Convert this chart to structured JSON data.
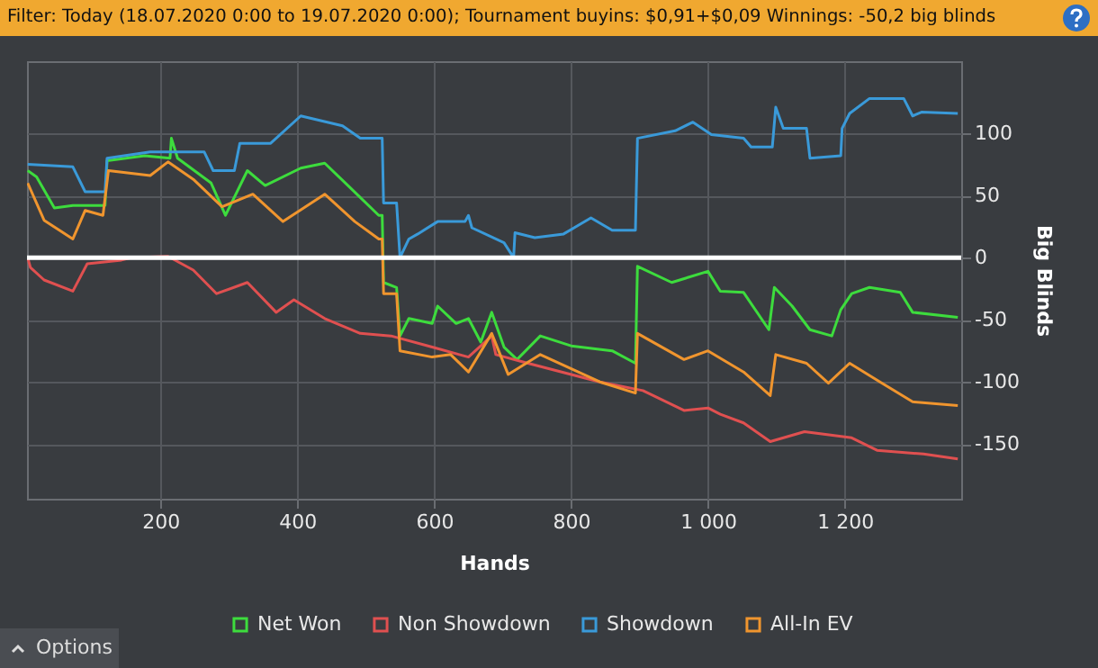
{
  "chart_data": {
    "type": "line",
    "title": "Filter: Today (18.07.2020 0:00 to 19.07.2020 0:00); Tournament buyins: $0,91+$0,09 Winnings: -50,2 big blinds",
    "xlabel": "Hands",
    "ylabel": "Big Blinds",
    "annotations": [
      "Options"
    ],
    "xlim": [
      5,
      1370
    ],
    "xticks": [
      200,
      400,
      600,
      800,
      {
        "value": 1000,
        "label": "1 000"
      },
      {
        "value": 1200,
        "label": "1 200"
      }
    ],
    "ylim": [
      -194,
      158
    ],
    "yticks": [
      -150,
      -100,
      -50,
      0,
      50,
      100
    ],
    "grid": true,
    "legend": "bottom",
    "ref_lines": [
      {
        "axis": "y",
        "value": 0,
        "color": "#ffffff"
      }
    ],
    "series": [
      {
        "name": "Net Won",
        "color": "#3ddc3d",
        "x": [
          6,
          19,
          45,
          72,
          119,
          122,
          177,
          214,
          216,
          225,
          274,
          295,
          327,
          353,
          405,
          440,
          474,
          519,
          524,
          526,
          545,
          550,
          563,
          597,
          605,
          632,
          650,
          668,
          684,
          702,
          721,
          755,
          800,
          860,
          894,
          897,
          947,
          1000,
          1018,
          1052,
          1089,
          1097,
          1123,
          1149,
          1181,
          1194,
          1210,
          1236,
          1281,
          1299,
          1365
        ],
        "values": [
          70,
          65,
          40,
          42,
          42,
          78,
          82,
          80,
          96,
          80,
          60,
          34,
          70,
          58,
          72,
          76,
          58,
          34,
          34,
          -20,
          -24,
          -63,
          -49,
          -53,
          -39,
          -53,
          -49,
          -68,
          -44,
          -72,
          -82,
          -63,
          -71,
          -75,
          -85,
          -7,
          -20,
          -11,
          -27,
          -28,
          -58,
          -24,
          -39,
          -58,
          -63,
          -42,
          -29,
          -24,
          -28,
          -44,
          -48
        ]
      },
      {
        "name": "Non Showdown",
        "color": "#e05050",
        "x": [
          6,
          10,
          30,
          72,
          93,
          143,
          158,
          211,
          248,
          282,
          327,
          369,
          395,
          440,
          492,
          537,
          597,
          650,
          684,
          690,
          737,
          842,
          905,
          965,
          1000,
          1018,
          1052,
          1091,
          1141,
          1210,
          1247,
          1315,
          1365
        ],
        "values": [
          0,
          -8,
          -18,
          -27,
          -5,
          -2,
          0,
          1,
          -10,
          -29,
          -20,
          -44,
          -34,
          -49,
          -61,
          -63,
          -72,
          -80,
          -63,
          -78,
          -85,
          -100,
          -107,
          -123,
          -121,
          -126,
          -133,
          -148,
          -140,
          -145,
          -155,
          -158,
          -162
        ]
      },
      {
        "name": "Showdown",
        "color": "#3a9ad9",
        "x": [
          6,
          72,
          90,
          119,
          122,
          185,
          264,
          277,
          308,
          316,
          361,
          405,
          466,
          492,
          524,
          526,
          545,
          550,
          563,
          576,
          605,
          645,
          650,
          655,
          702,
          716,
          718,
          747,
          789,
          829,
          860,
          894,
          897,
          952,
          978,
          1005,
          1052,
          1063,
          1094,
          1099,
          1110,
          1144,
          1149,
          1194,
          1196,
          1207,
          1236,
          1286,
          1299,
          1312,
          1365
        ],
        "values": [
          75,
          73,
          53,
          53,
          80,
          85,
          85,
          70,
          70,
          92,
          92,
          114,
          106,
          96,
          96,
          44,
          44,
          0,
          15,
          19,
          29,
          29,
          34,
          24,
          12,
          0,
          20,
          16,
          19,
          32,
          22,
          22,
          96,
          102,
          109,
          99,
          96,
          89,
          89,
          121,
          104,
          104,
          80,
          82,
          104,
          116,
          128,
          128,
          114,
          117,
          116
        ]
      },
      {
        "name": "All-In EV",
        "color": "#f0952e",
        "x": [
          6,
          30,
          72,
          90,
          116,
          124,
          185,
          211,
          248,
          290,
          335,
          379,
          440,
          484,
          519,
          524,
          526,
          545,
          550,
          597,
          624,
          650,
          684,
          708,
          755,
          842,
          894,
          897,
          965,
          1000,
          1052,
          1091,
          1099,
          1144,
          1176,
          1207,
          1254,
          1299,
          1365
        ],
        "values": [
          60,
          30,
          15,
          38,
          34,
          70,
          66,
          77,
          63,
          41,
          51,
          29,
          51,
          29,
          15,
          15,
          -29,
          -29,
          -75,
          -80,
          -78,
          -92,
          -61,
          -94,
          -78,
          -100,
          -109,
          -61,
          -82,
          -75,
          -92,
          -111,
          -78,
          -85,
          -101,
          -85,
          -101,
          -116,
          -119
        ]
      }
    ]
  }
}
